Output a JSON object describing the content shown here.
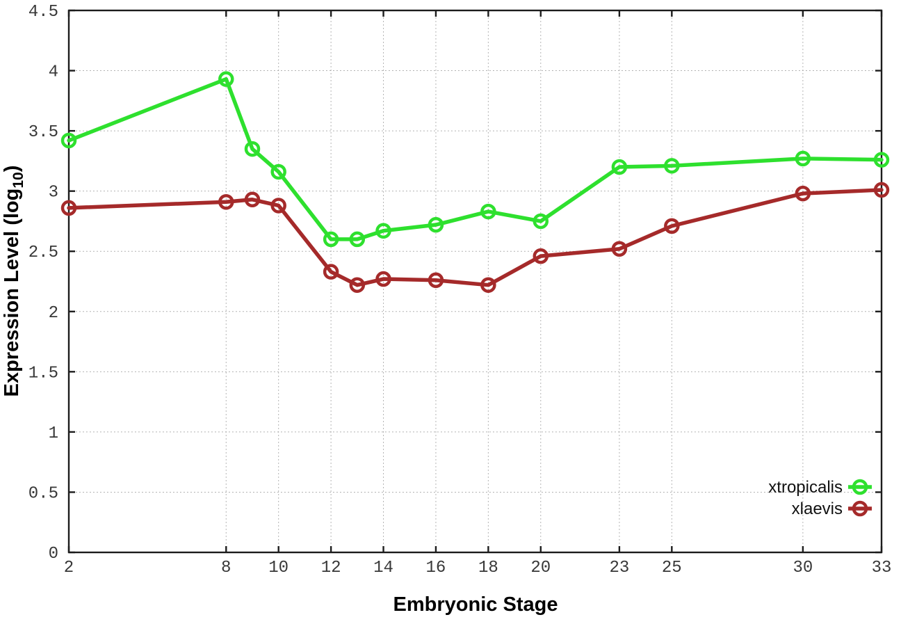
{
  "chart_data": {
    "type": "line",
    "xlabel": "Embryonic Stage",
    "ylabel": "Expression Level (log10)",
    "ylabel_main": "Expression Level (log",
    "ylabel_sub": "10",
    "ylabel_close": ")",
    "xlim": [
      2,
      33
    ],
    "ylim": [
      0,
      4.5
    ],
    "xticks": [
      2,
      8,
      10,
      12,
      14,
      16,
      18,
      20,
      23,
      25,
      30,
      33
    ],
    "xtick_labels": [
      "2",
      "8",
      "10",
      "12",
      "14",
      "16",
      "18",
      "20",
      "23",
      "25",
      "30",
      "33"
    ],
    "yticks": [
      0,
      0.5,
      1,
      1.5,
      2,
      2.5,
      3,
      3.5,
      4,
      4.5
    ],
    "ytick_labels": [
      "0",
      "0.5",
      "1",
      "1.5",
      "2",
      "2.5",
      "3",
      "3.5",
      "4",
      "4.5"
    ],
    "grid": true,
    "grid_style": "dotted",
    "grid_color": "#aaaaaa",
    "axis_color": "#1c1c1c",
    "legend_position": "bottom-right",
    "marker": "open-circle",
    "x": [
      2,
      8,
      9,
      10,
      12,
      13,
      14,
      16,
      18,
      20,
      23,
      25,
      30,
      33
    ],
    "series": [
      {
        "name": "xtropicalis",
        "color": "#2ee02e",
        "values": [
          3.42,
          3.93,
          3.35,
          3.16,
          2.6,
          2.6,
          2.67,
          2.72,
          2.83,
          2.75,
          3.2,
          3.21,
          3.27,
          3.26
        ]
      },
      {
        "name": "xlaevis",
        "color": "#a52a2a",
        "values": [
          2.86,
          2.91,
          2.93,
          2.88,
          2.33,
          2.22,
          2.27,
          2.26,
          2.22,
          2.46,
          2.52,
          2.71,
          2.98,
          3.01
        ]
      }
    ]
  }
}
